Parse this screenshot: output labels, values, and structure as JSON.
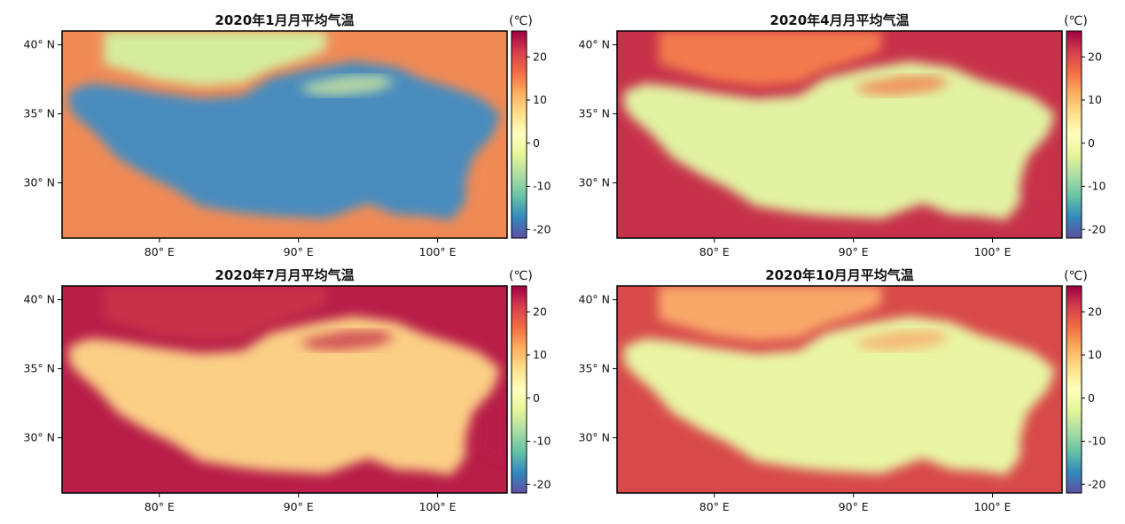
{
  "figure": {
    "lat_ticks": [
      "40° N",
      "35° N",
      "30° N"
    ],
    "lon_ticks": [
      "80° E",
      "90° E",
      "100° E"
    ],
    "colorbar": {
      "unit": "(℃)",
      "ticks": [
        "20",
        "10",
        "0",
        "-10",
        "-20"
      ],
      "range": [
        -22,
        26
      ],
      "colormap": [
        "#5e4fa2",
        "#3288bd",
        "#66c2a5",
        "#abdda4",
        "#e6f598",
        "#ffffbf",
        "#fee08b",
        "#fdae61",
        "#f46d43",
        "#d53e4f",
        "#9e0142"
      ]
    },
    "panels": [
      {
        "title": "2020年1月月平均气温",
        "plateau_color": "#4a8cbe",
        "lowland_color": "#f08a55",
        "basin_color": "#d5ec9e"
      },
      {
        "title": "2020年4月月平均气温",
        "plateau_color": "#e2f2a2",
        "lowland_color": "#c7324a",
        "basin_color": "#f37a4e"
      },
      {
        "title": "2020年7月月平均气温",
        "plateau_color": "#fbcf86",
        "lowland_color": "#b81e48",
        "basin_color": "#c7324a"
      },
      {
        "title": "2020年10月月平均气温",
        "plateau_color": "#e9f5a4",
        "lowland_color": "#d84a4a",
        "basin_color": "#f9a86a"
      }
    ]
  },
  "map_layers": {
    "plateau_outline_lonlat": [
      [
        73.5,
        36.6
      ],
      [
        75,
        37.2
      ],
      [
        77,
        37.0
      ],
      [
        80,
        36.5
      ],
      [
        83,
        36.1
      ],
      [
        86,
        36.3
      ],
      [
        88,
        37.6
      ],
      [
        91,
        38.3
      ],
      [
        94,
        38.8
      ],
      [
        97,
        38.4
      ],
      [
        99,
        37.5
      ],
      [
        101,
        36.9
      ],
      [
        103,
        36.2
      ],
      [
        104.5,
        35.0
      ],
      [
        104,
        33.5
      ],
      [
        102.5,
        31.8
      ],
      [
        102,
        30.0
      ],
      [
        102,
        28.6
      ],
      [
        101,
        27.3
      ],
      [
        99,
        27.6
      ],
      [
        97,
        27.7
      ],
      [
        95,
        28.5
      ],
      [
        92,
        27.4
      ],
      [
        88,
        27.6
      ],
      [
        86,
        27.8
      ],
      [
        83,
        28.3
      ],
      [
        81,
        29.6
      ],
      [
        79,
        30.6
      ],
      [
        77,
        31.8
      ],
      [
        75.5,
        33.5
      ],
      [
        74,
        34.8
      ],
      [
        73.5,
        35.5
      ]
    ],
    "basin_outline_lonlat": [
      [
        76,
        38.6
      ],
      [
        78,
        38.0
      ],
      [
        80,
        37.4
      ],
      [
        83,
        37.0
      ],
      [
        86,
        37.2
      ],
      [
        88,
        38.2
      ],
      [
        90,
        38.8
      ],
      [
        92,
        39.6
      ],
      [
        92,
        41.0
      ],
      [
        76,
        41.0
      ]
    ],
    "qaidam_outline_lonlat": [
      [
        90,
        37.0
      ],
      [
        91.5,
        37.4
      ],
      [
        93.5,
        37.8
      ],
      [
        96,
        37.8
      ],
      [
        97,
        37.2
      ],
      [
        95.5,
        36.6
      ],
      [
        93,
        36.3
      ],
      [
        91,
        36.4
      ]
    ],
    "sichuan_outline_lonlat": [
      [
        103,
        33.0
      ],
      [
        105,
        33.0
      ],
      [
        105,
        28.0
      ],
      [
        103,
        29.0
      ]
    ]
  }
}
